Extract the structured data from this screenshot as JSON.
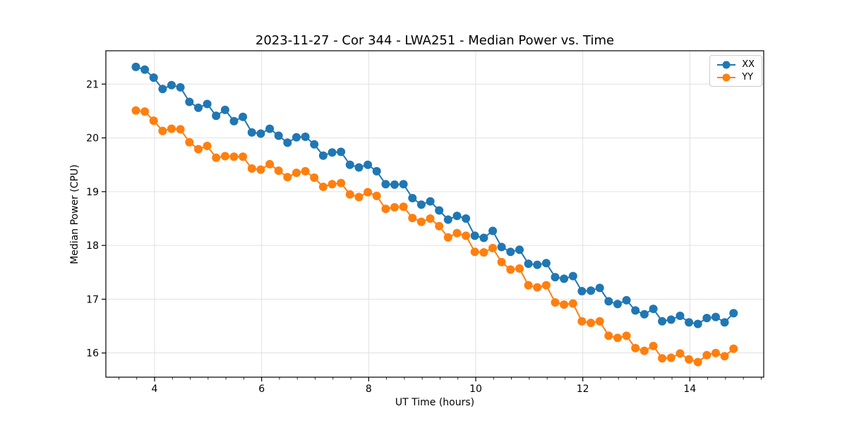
{
  "chart_data": {
    "type": "line",
    "title": "2023-11-27 - Cor 344 - LWA251 - Median Power vs. Time",
    "xlabel": "UT Time (hours)",
    "ylabel": "Median Power (CPU)",
    "xlim": [
      3.09,
      15.38
    ],
    "ylim": [
      15.55,
      21.62
    ],
    "x_major_ticks": [
      4,
      6,
      8,
      10,
      12,
      14
    ],
    "x_minor_tick_step": 0.33333,
    "y_major_ticks": [
      16,
      17,
      18,
      19,
      20,
      21
    ],
    "grid": true,
    "grid_color": "#e0e0e0",
    "background": "#ffffff",
    "legend_position": "upper right",
    "line_width": 2,
    "marker": "o",
    "marker_radius": 6,
    "x": [
      3.65,
      3.817,
      3.983,
      4.15,
      4.317,
      4.483,
      4.65,
      4.817,
      4.983,
      5.15,
      5.317,
      5.483,
      5.65,
      5.817,
      5.983,
      6.15,
      6.317,
      6.483,
      6.65,
      6.817,
      6.983,
      7.15,
      7.317,
      7.483,
      7.65,
      7.817,
      7.983,
      8.15,
      8.317,
      8.483,
      8.65,
      8.817,
      8.983,
      9.15,
      9.317,
      9.483,
      9.65,
      9.817,
      9.983,
      10.15,
      10.317,
      10.483,
      10.65,
      10.817,
      10.983,
      11.15,
      11.317,
      11.483,
      11.65,
      11.817,
      11.983,
      12.15,
      12.317,
      12.483,
      12.65,
      12.817,
      12.983,
      13.15,
      13.317,
      13.483,
      13.65,
      13.817,
      13.983,
      14.15,
      14.317,
      14.483,
      14.65,
      14.817
    ],
    "series": [
      {
        "name": "XX",
        "color": "#1f77b4",
        "values": [
          21.32,
          21.27,
          21.12,
          20.91,
          20.98,
          20.94,
          20.67,
          20.56,
          20.63,
          20.41,
          20.52,
          20.31,
          20.39,
          20.1,
          20.08,
          20.17,
          20.04,
          19.91,
          20.01,
          20.02,
          19.88,
          19.67,
          19.73,
          19.74,
          19.5,
          19.45,
          19.5,
          19.38,
          19.14,
          19.13,
          19.14,
          18.88,
          18.76,
          18.82,
          18.65,
          18.48,
          18.55,
          18.5,
          18.18,
          18.14,
          18.27,
          17.97,
          17.88,
          17.92,
          17.66,
          17.64,
          17.67,
          17.41,
          17.38,
          17.43,
          17.15,
          17.16,
          17.21,
          16.96,
          16.91,
          16.98,
          16.79,
          16.72,
          16.82,
          16.59,
          16.62,
          16.69,
          16.57,
          16.54,
          16.65,
          16.67,
          16.57,
          16.74
        ]
      },
      {
        "name": "YY",
        "color": "#ff7f0e",
        "values": [
          20.51,
          20.49,
          20.32,
          20.13,
          20.17,
          20.16,
          19.92,
          19.79,
          19.85,
          19.63,
          19.66,
          19.65,
          19.65,
          19.43,
          19.41,
          19.51,
          19.39,
          19.27,
          19.35,
          19.38,
          19.26,
          19.09,
          19.14,
          19.16,
          18.95,
          18.9,
          18.99,
          18.92,
          18.68,
          18.71,
          18.72,
          18.51,
          18.44,
          18.5,
          18.36,
          18.15,
          18.23,
          18.18,
          17.88,
          17.87,
          17.95,
          17.69,
          17.55,
          17.57,
          17.26,
          17.22,
          17.26,
          16.94,
          16.9,
          16.92,
          16.59,
          16.56,
          16.59,
          16.32,
          16.28,
          16.32,
          16.09,
          16.04,
          16.13,
          15.9,
          15.91,
          15.99,
          15.88,
          15.83,
          15.96,
          16.0,
          15.94,
          16.08
        ]
      }
    ]
  }
}
